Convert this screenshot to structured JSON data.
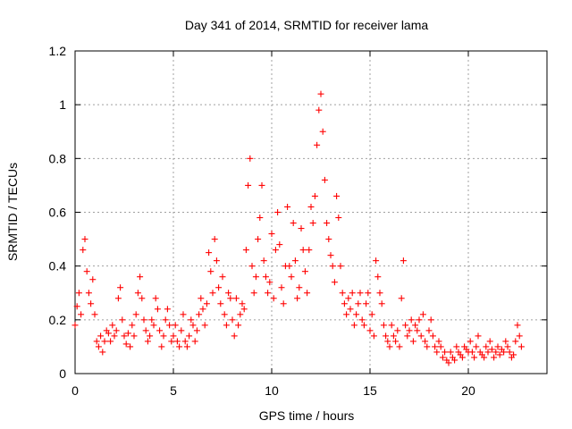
{
  "chart_data": {
    "type": "scatter",
    "title": "Day 341 of 2014, SRMTID for receiver lama",
    "xlabel": "GPS time / hours",
    "ylabel": "SRMTID / TECUs",
    "xlim": [
      0,
      24
    ],
    "ylim": [
      0,
      1.2
    ],
    "xticks": [
      0,
      5,
      10,
      15,
      20
    ],
    "xtick_labels": [
      "0",
      "5",
      "10",
      "15",
      "20"
    ],
    "yticks": [
      0,
      0.2,
      0.4,
      0.6,
      0.8,
      1.0,
      1.2
    ],
    "ytick_labels": [
      "0",
      "0.2",
      "0.4",
      "0.6",
      "0.8",
      "1",
      "1.2"
    ],
    "grid": true,
    "marker": "+",
    "color": "#ff0000",
    "series": [
      {
        "name": "SRMTID",
        "x": [
          0.0,
          0.1,
          0.2,
          0.3,
          0.4,
          0.5,
          0.6,
          0.7,
          0.8,
          0.9,
          1.0,
          1.1,
          1.2,
          1.3,
          1.4,
          1.5,
          1.6,
          1.7,
          1.8,
          1.9,
          2.0,
          2.1,
          2.2,
          2.3,
          2.4,
          2.5,
          2.6,
          2.7,
          2.8,
          2.9,
          3.0,
          3.1,
          3.2,
          3.3,
          3.4,
          3.5,
          3.6,
          3.7,
          3.8,
          3.9,
          4.0,
          4.1,
          4.2,
          4.3,
          4.4,
          4.5,
          4.6,
          4.7,
          4.8,
          4.9,
          5.0,
          5.1,
          5.2,
          5.3,
          5.4,
          5.5,
          5.6,
          5.7,
          5.8,
          5.9,
          6.0,
          6.1,
          6.2,
          6.3,
          6.4,
          6.5,
          6.6,
          6.7,
          6.8,
          6.9,
          7.0,
          7.1,
          7.2,
          7.3,
          7.4,
          7.5,
          7.6,
          7.7,
          7.8,
          7.9,
          8.0,
          8.1,
          8.2,
          8.3,
          8.4,
          8.5,
          8.6,
          8.7,
          8.8,
          8.9,
          9.0,
          9.1,
          9.2,
          9.3,
          9.4,
          9.5,
          9.6,
          9.7,
          9.8,
          9.9,
          10.0,
          10.1,
          10.2,
          10.3,
          10.4,
          10.5,
          10.6,
          10.7,
          10.8,
          10.9,
          11.0,
          11.1,
          11.2,
          11.3,
          11.4,
          11.5,
          11.6,
          11.7,
          11.8,
          11.9,
          12.0,
          12.1,
          12.2,
          12.3,
          12.4,
          12.5,
          12.6,
          12.7,
          12.8,
          12.9,
          13.0,
          13.1,
          13.2,
          13.3,
          13.4,
          13.5,
          13.6,
          13.7,
          13.8,
          13.9,
          14.0,
          14.1,
          14.2,
          14.3,
          14.4,
          14.5,
          14.6,
          14.7,
          14.8,
          14.9,
          15.0,
          15.1,
          15.2,
          15.3,
          15.4,
          15.5,
          15.6,
          15.7,
          15.8,
          15.9,
          16.0,
          16.1,
          16.2,
          16.3,
          16.4,
          16.5,
          16.6,
          16.7,
          16.8,
          16.9,
          17.0,
          17.1,
          17.2,
          17.3,
          17.4,
          17.5,
          17.6,
          17.7,
          17.8,
          17.9,
          18.0,
          18.1,
          18.2,
          18.3,
          18.4,
          18.5,
          18.6,
          18.7,
          18.8,
          18.9,
          19.0,
          19.1,
          19.2,
          19.3,
          19.4,
          19.5,
          19.6,
          19.7,
          19.8,
          19.9,
          20.0,
          20.1,
          20.2,
          20.3,
          20.4,
          20.5,
          20.6,
          20.7,
          20.8,
          20.9,
          21.0,
          21.1,
          21.2,
          21.3,
          21.4,
          21.5,
          21.6,
          21.7,
          21.8,
          21.9,
          22.0,
          22.1,
          22.2,
          22.3,
          22.4,
          22.5,
          22.6,
          22.7
        ],
        "y": [
          0.18,
          0.25,
          0.3,
          0.22,
          0.46,
          0.5,
          0.38,
          0.3,
          0.26,
          0.35,
          0.22,
          0.12,
          0.1,
          0.14,
          0.08,
          0.12,
          0.16,
          0.15,
          0.12,
          0.18,
          0.14,
          0.16,
          0.28,
          0.32,
          0.2,
          0.14,
          0.11,
          0.15,
          0.1,
          0.18,
          0.14,
          0.22,
          0.3,
          0.36,
          0.28,
          0.2,
          0.16,
          0.12,
          0.14,
          0.2,
          0.18,
          0.28,
          0.24,
          0.16,
          0.1,
          0.14,
          0.2,
          0.24,
          0.18,
          0.12,
          0.14,
          0.18,
          0.12,
          0.1,
          0.16,
          0.22,
          0.12,
          0.1,
          0.14,
          0.2,
          0.18,
          0.12,
          0.16,
          0.22,
          0.28,
          0.24,
          0.18,
          0.26,
          0.45,
          0.38,
          0.3,
          0.5,
          0.42,
          0.32,
          0.26,
          0.36,
          0.22,
          0.18,
          0.3,
          0.28,
          0.2,
          0.14,
          0.28,
          0.18,
          0.22,
          0.26,
          0.24,
          0.46,
          0.7,
          0.8,
          0.4,
          0.3,
          0.36,
          0.5,
          0.58,
          0.7,
          0.42,
          0.36,
          0.3,
          0.34,
          0.52,
          0.28,
          0.46,
          0.6,
          0.48,
          0.32,
          0.26,
          0.4,
          0.62,
          0.4,
          0.36,
          0.56,
          0.42,
          0.28,
          0.32,
          0.54,
          0.46,
          0.38,
          0.3,
          0.46,
          0.62,
          0.56,
          0.66,
          0.85,
          0.98,
          1.04,
          0.9,
          0.72,
          0.56,
          0.5,
          0.44,
          0.4,
          0.34,
          0.66,
          0.58,
          0.4,
          0.3,
          0.26,
          0.22,
          0.28,
          0.24,
          0.3,
          0.18,
          0.22,
          0.26,
          0.3,
          0.2,
          0.18,
          0.26,
          0.3,
          0.16,
          0.22,
          0.14,
          0.42,
          0.36,
          0.3,
          0.26,
          0.18,
          0.14,
          0.12,
          0.1,
          0.18,
          0.14,
          0.12,
          0.16,
          0.1,
          0.28,
          0.42,
          0.18,
          0.14,
          0.16,
          0.2,
          0.12,
          0.18,
          0.16,
          0.2,
          0.14,
          0.22,
          0.12,
          0.1,
          0.16,
          0.2,
          0.14,
          0.1,
          0.08,
          0.12,
          0.1,
          0.06,
          0.08,
          0.05,
          0.04,
          0.08,
          0.06,
          0.05,
          0.1,
          0.08,
          0.07,
          0.06,
          0.1,
          0.09,
          0.08,
          0.12,
          0.08,
          0.06,
          0.1,
          0.14,
          0.08,
          0.07,
          0.06,
          0.1,
          0.08,
          0.12,
          0.09,
          0.06,
          0.08,
          0.1,
          0.07,
          0.09,
          0.08,
          0.12,
          0.1,
          0.08,
          0.06,
          0.07,
          0.12,
          0.18,
          0.14,
          0.1
        ]
      }
    ]
  }
}
